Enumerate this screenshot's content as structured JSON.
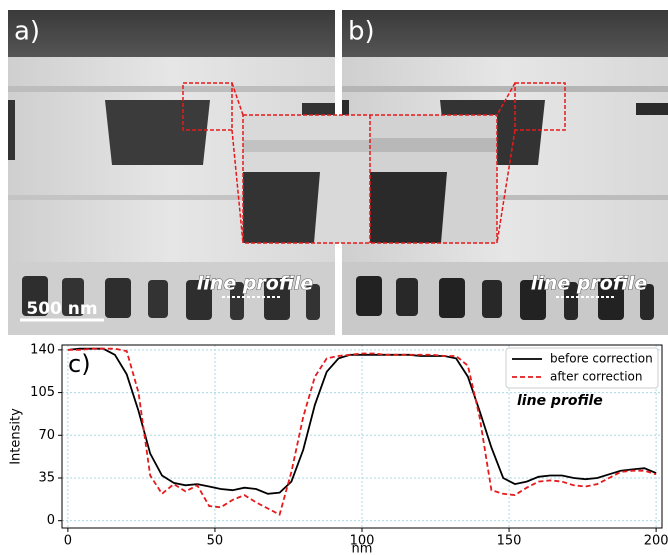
{
  "panels": {
    "labels": [
      "a)",
      "b)"
    ],
    "scale_bar": "500 nm",
    "annotations": [
      "line profile",
      "line profile"
    ]
  },
  "chart_data": {
    "type": "line",
    "panel_label": "c)",
    "annotation": "line profile",
    "x_label": "nm",
    "y_label": "Intensity",
    "x": [
      0,
      4,
      8,
      12,
      16,
      20,
      24,
      28,
      32,
      36,
      40,
      44,
      48,
      52,
      56,
      60,
      64,
      68,
      72,
      76,
      80,
      84,
      88,
      92,
      96,
      100,
      104,
      108,
      112,
      116,
      120,
      124,
      128,
      132,
      136,
      140,
      144,
      148,
      152,
      156,
      160,
      164,
      168,
      172,
      176,
      180,
      184,
      188,
      192,
      196,
      200
    ],
    "series": [
      {
        "name": "before correction",
        "color": "#000000",
        "dash": false,
        "values": [
          140,
          141,
          141,
          141,
          136,
          120,
          90,
          55,
          37,
          31,
          29,
          30,
          28,
          26,
          25,
          27,
          26,
          22,
          23,
          32,
          58,
          95,
          122,
          133,
          136,
          136,
          136,
          136,
          136,
          136,
          135,
          135,
          135,
          133,
          118,
          90,
          60,
          35,
          30,
          32,
          36,
          37,
          37,
          35,
          34,
          35,
          38,
          41,
          42,
          43,
          39
        ]
      },
      {
        "name": "after correction",
        "color": "#e41a1c",
        "dash": true,
        "values": [
          140,
          140,
          141,
          141,
          141,
          139,
          105,
          37,
          22,
          30,
          24,
          29,
          12,
          11,
          17,
          21,
          15,
          10,
          5,
          40,
          85,
          118,
          133,
          135,
          136,
          137,
          137,
          136,
          136,
          136,
          136,
          136,
          135,
          135,
          127,
          85,
          25,
          22,
          21,
          27,
          32,
          33,
          32,
          29,
          28,
          30,
          35,
          40,
          41,
          41,
          38
        ]
      }
    ],
    "xlim": [
      -2,
      202
    ],
    "ylim": [
      -6,
      144
    ],
    "xticks": [
      0,
      50,
      100,
      150,
      200
    ],
    "yticks": [
      0,
      35,
      70,
      105,
      140
    ],
    "grid": true,
    "legend": "upper right"
  }
}
